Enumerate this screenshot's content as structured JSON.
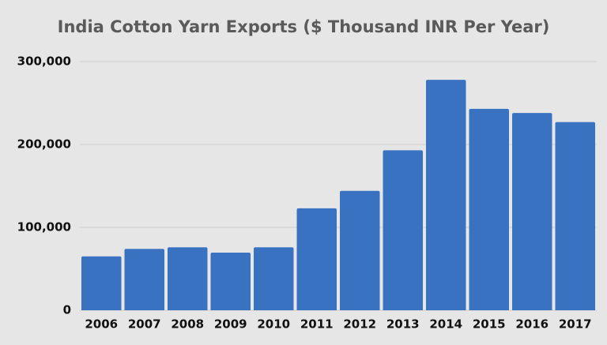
{
  "chart_data": {
    "type": "bar",
    "title": "India Cotton Yarn Exports ($ Thousand INR Per Year)",
    "categories": [
      "2006",
      "2007",
      "2008",
      "2009",
      "2010",
      "2011",
      "2012",
      "2013",
      "2014",
      "2015",
      "2016",
      "2017"
    ],
    "values": [
      65000,
      74000,
      76000,
      69500,
      76000,
      123000,
      144000,
      193000,
      278000,
      243000,
      238000,
      227000
    ],
    "color": "#3a72c2",
    "ylim": [
      0,
      300000
    ],
    "yticks": [
      0,
      {
        "value": 100000,
        "label": "100,000"
      },
      {
        "value": 200000,
        "label": "200,000"
      },
      {
        "value": 300000,
        "label": "300,000"
      }
    ],
    "grid": true
  }
}
